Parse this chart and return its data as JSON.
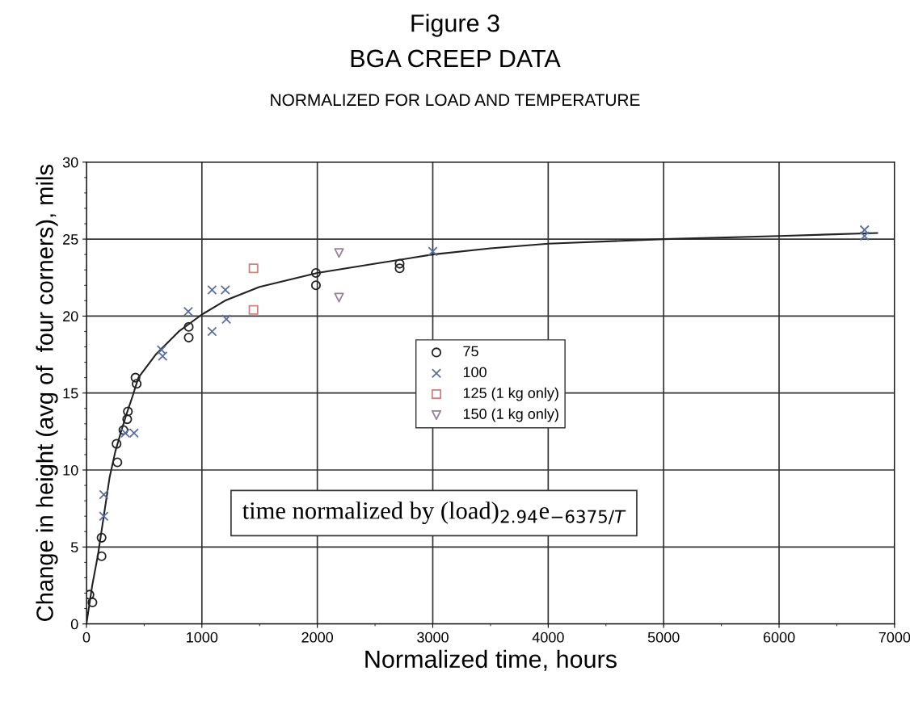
{
  "chart_data": {
    "type": "scatter",
    "title": "BGA CREEP DATA",
    "subtitle": "NORMALIZED FOR LOAD AND TEMPERATURE",
    "xlabel": "Normalized time, hours",
    "ylabel": "Change in height (avg of  four corners), mils",
    "annotations": [
      "Figure 3",
      "time normalized by (load)$_{2.94}$e$_{−6375/T}$"
    ],
    "series": [
      {
        "name": "75",
        "marker": "circle",
        "color": "#222222",
        "x": [
          26,
          52,
          131,
          131,
          261,
          268,
          320,
          353,
          359,
          425,
          435,
          886,
          886,
          1988,
          1988,
          2713,
          2713
        ],
        "values": [
          1.9,
          1.4,
          5.6,
          4.4,
          11.7,
          10.5,
          12.6,
          13.3,
          13.8,
          16.0,
          15.6,
          19.3,
          18.6,
          22.8,
          22.0,
          23.4,
          23.1
        ]
      },
      {
        "name": "100",
        "marker": "cross",
        "color": "#5a6fa0",
        "x": [
          150,
          150,
          337,
          412,
          650,
          660,
          882,
          1088,
          1203,
          1088,
          1212,
          3000,
          6740,
          6740
        ],
        "values": [
          8.4,
          7.0,
          12.4,
          12.4,
          17.8,
          17.4,
          20.3,
          21.7,
          21.7,
          19.0,
          19.8,
          24.2,
          25.6,
          25.2
        ]
      },
      {
        "name": "125 (1 kg only)",
        "marker": "square",
        "color": "#d08080",
        "x": [
          1447,
          1447
        ],
        "values": [
          23.1,
          20.4
        ]
      },
      {
        "name": "150 (1 kg only)",
        "marker": "triangle",
        "color": "#9a7f9a",
        "x": [
          2188,
          2188
        ],
        "values": [
          24.1,
          21.2
        ]
      },
      {
        "type": "line",
        "marker": "none",
        "color": "#222222",
        "x": [
          0,
          50,
          100,
          150,
          200,
          250,
          300,
          350,
          400,
          450,
          600,
          800,
          1000,
          1200,
          1500,
          2000,
          2500,
          3000,
          3500,
          4000,
          5000,
          6000,
          6850
        ],
        "values": [
          0,
          2.5,
          4.5,
          7.0,
          9.5,
          11.2,
          12.5,
          13.7,
          14.8,
          16.0,
          17.5,
          19.0,
          20.1,
          21.0,
          21.9,
          22.8,
          23.4,
          24.0,
          24.4,
          24.7,
          25.0,
          25.2,
          25.4
        ]
      }
    ],
    "xlim": [
      0,
      7000
    ],
    "xticks": [
      0,
      1000,
      2000,
      3000,
      4000,
      5000,
      6000,
      7000
    ],
    "ylim": [
      0,
      30
    ],
    "yticks": [
      0,
      5,
      10,
      15,
      20,
      25,
      30
    ],
    "grid": true,
    "legend": "center"
  }
}
